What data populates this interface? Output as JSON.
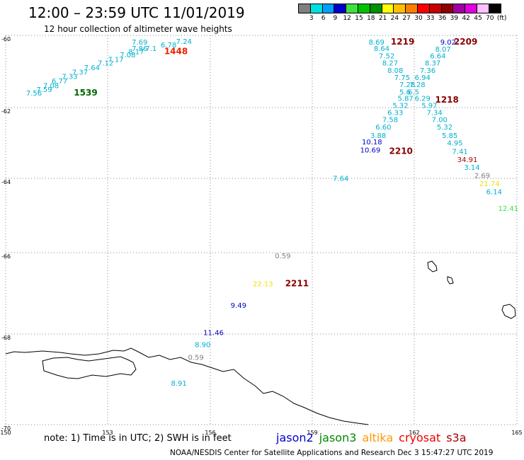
{
  "header": {
    "title": "12:00 – 23:59 UTC 11/01/2019",
    "subtitle": "12 hour collection of altimeter wave heights"
  },
  "legend": {
    "colors": [
      "#808080",
      "#00e0e0",
      "#00a0ff",
      "#0000c8",
      "#40e040",
      "#00c000",
      "#009000",
      "#ffff00",
      "#ffc000",
      "#ff8000",
      "#ff0000",
      "#c80000",
      "#900000",
      "#a000a0",
      "#e000e0",
      "#ffc0ff",
      "#000000"
    ],
    "labels": [
      "3",
      "6",
      "9",
      "12",
      "15",
      "18",
      "21",
      "24",
      "27",
      "30",
      "33",
      "36",
      "39",
      "42",
      "45",
      "70",
      "(ft)"
    ]
  },
  "footer": {
    "note": "note:  1) Time is in UTC;  2) SWH is in feet",
    "credit": "NOAA/NESDIS Center for Satellite Applications and Research     Dec  3 15:47:27 UTC 2019",
    "missions": [
      {
        "name": "jason2",
        "color": "#0000cc"
      },
      {
        "name": "jason3",
        "color": "#008800"
      },
      {
        "name": "altika",
        "color": "#ff9900"
      },
      {
        "name": "cryosat",
        "color": "#ee0000"
      },
      {
        "name": "s3a",
        "color": "#aa0000"
      }
    ]
  },
  "chart_data": {
    "type": "scatter",
    "xlim": [
      150,
      165
    ],
    "ylim": [
      -70,
      -60
    ],
    "x_ticks": [
      "150",
      "153",
      "156",
      "159",
      "162",
      "165"
    ],
    "y_ticks": [
      "-60",
      "-62",
      "-64",
      "-66",
      "-68",
      "-70"
    ],
    "grid": true,
    "series": [
      {
        "name": "jason3",
        "color": "#008800",
        "values": [
          {
            "lon": 152.0,
            "lat": -61.43,
            "label": "1539",
            "color": "#006600",
            "bold": true
          }
        ]
      },
      {
        "name": "cryosat",
        "color": "#ee0000",
        "values": [
          {
            "lon": 154.65,
            "lat": -60.28,
            "label": "1448",
            "color": "#ee2200",
            "bold": true
          }
        ]
      },
      {
        "name": "s3a",
        "color": "#aa0000",
        "values": [
          {
            "lon": 161.3,
            "lat": -60.02,
            "label": "1219",
            "color": "#880000",
            "bold": true
          },
          {
            "lon": 163.15,
            "lat": -60.02,
            "label": "2209",
            "color": "#880000",
            "bold": true
          },
          {
            "lon": 162.6,
            "lat": -61.63,
            "label": "1218",
            "color": "#880000",
            "bold": true
          },
          {
            "lon": 161.25,
            "lat": -63.07,
            "label": "2210",
            "color": "#880000",
            "bold": true
          },
          {
            "lon": 158.2,
            "lat": -66.62,
            "label": "2211",
            "color": "#880000",
            "bold": true
          }
        ]
      },
      {
        "name": "swh",
        "values": [
          {
            "lon": 150.6,
            "lat": -61.43,
            "label": "7.56",
            "color": "#00b0d0"
          },
          {
            "lon": 150.9,
            "lat": -61.33,
            "label": "7.59",
            "color": "#00b0d0"
          },
          {
            "lon": 151.1,
            "lat": -61.23,
            "label": "7.08",
            "color": "#00b0d0"
          },
          {
            "lon": 151.35,
            "lat": -61.1,
            "label": "6.77",
            "color": "#00b0d0"
          },
          {
            "lon": 151.65,
            "lat": -60.97,
            "label": "7.33",
            "color": "#00b0d0"
          },
          {
            "lon": 151.95,
            "lat": -60.85,
            "label": "7.37",
            "color": "#00b0d0"
          },
          {
            "lon": 152.3,
            "lat": -60.73,
            "label": "7.64",
            "color": "#00b0d0"
          },
          {
            "lon": 152.7,
            "lat": -60.6,
            "label": "7.12",
            "color": "#00b0d0"
          },
          {
            "lon": 153.0,
            "lat": -60.5,
            "label": "7.17",
            "color": "#00b0d0"
          },
          {
            "lon": 153.35,
            "lat": -60.37,
            "label": "7.08",
            "color": "#00b0d0"
          },
          {
            "lon": 153.6,
            "lat": -60.28,
            "label": "8.17",
            "color": "#00b0d0"
          },
          {
            "lon": 153.7,
            "lat": -60.2,
            "label": "7.86",
            "color": "#00b0d0"
          },
          {
            "lon": 154.1,
            "lat": -60.2,
            "label": "7.1",
            "color": "#00b0d0"
          },
          {
            "lon": 153.7,
            "lat": -60.02,
            "label": "7.69",
            "color": "#00b0d0"
          },
          {
            "lon": 154.55,
            "lat": -60.1,
            "label": "6.78",
            "color": "#00b0d0"
          },
          {
            "lon": 155.0,
            "lat": -60.0,
            "label": "7.24",
            "color": "#00b0d0"
          },
          {
            "lon": 160.65,
            "lat": -60.02,
            "label": "8.69",
            "color": "#00b0d0"
          },
          {
            "lon": 160.8,
            "lat": -60.2,
            "label": "8.64",
            "color": "#00b0d0"
          },
          {
            "lon": 160.95,
            "lat": -60.4,
            "label": "7.52",
            "color": "#00b0d0"
          },
          {
            "lon": 161.05,
            "lat": -60.6,
            "label": "8.27",
            "color": "#00b0d0"
          },
          {
            "lon": 161.2,
            "lat": -60.8,
            "label": "8.08",
            "color": "#00b0d0"
          },
          {
            "lon": 161.4,
            "lat": -61.0,
            "label": "7.75",
            "color": "#00b0d0"
          },
          {
            "lon": 161.55,
            "lat": -61.2,
            "label": "7.28",
            "color": "#00b0d0"
          },
          {
            "lon": 161.55,
            "lat": -61.4,
            "label": "5.6",
            "color": "#00b0d0"
          },
          {
            "lon": 161.5,
            "lat": -61.58,
            "label": "5.87",
            "color": "#00b0d0"
          },
          {
            "lon": 161.35,
            "lat": -61.77,
            "label": "5.32",
            "color": "#00b0d0"
          },
          {
            "lon": 161.2,
            "lat": -61.97,
            "label": "6.33",
            "color": "#00b0d0"
          },
          {
            "lon": 161.05,
            "lat": -62.17,
            "label": "7.58",
            "color": "#00b0d0"
          },
          {
            "lon": 160.85,
            "lat": -62.38,
            "label": "6.60",
            "color": "#00b0d0"
          },
          {
            "lon": 160.7,
            "lat": -62.62,
            "label": "3.88",
            "color": "#00b0d0"
          },
          {
            "lon": 160.45,
            "lat": -62.8,
            "label": "10.18",
            "color": "#0000cc"
          },
          {
            "lon": 160.4,
            "lat": -63.03,
            "label": "10.69",
            "color": "#0000cc"
          },
          {
            "lon": 159.6,
            "lat": -63.83,
            "label": "7.64",
            "color": "#00b0d0"
          },
          {
            "lon": 162.75,
            "lat": -60.02,
            "label": "9.02",
            "color": "#0000cc"
          },
          {
            "lon": 162.6,
            "lat": -60.22,
            "label": "8.07",
            "color": "#00b0d0"
          },
          {
            "lon": 162.45,
            "lat": -60.4,
            "label": "6.64",
            "color": "#00b0d0"
          },
          {
            "lon": 162.3,
            "lat": -60.6,
            "label": "8.37",
            "color": "#00b0d0"
          },
          {
            "lon": 162.15,
            "lat": -60.8,
            "label": "7.36",
            "color": "#00b0d0"
          },
          {
            "lon": 162.0,
            "lat": -61.0,
            "label": "6.94",
            "color": "#00b0d0"
          },
          {
            "lon": 161.85,
            "lat": -61.2,
            "label": "7.28",
            "color": "#00b0d0"
          },
          {
            "lon": 161.8,
            "lat": -61.4,
            "label": "6.5",
            "color": "#00b0d0"
          },
          {
            "lon": 162.0,
            "lat": -61.58,
            "label": "6.29",
            "color": "#00b0d0"
          },
          {
            "lon": 162.2,
            "lat": -61.77,
            "label": "5.97",
            "color": "#00b0d0"
          },
          {
            "lon": 162.35,
            "lat": -61.97,
            "label": "7.34",
            "color": "#00b0d0"
          },
          {
            "lon": 162.5,
            "lat": -62.17,
            "label": "7.00",
            "color": "#00b0d0"
          },
          {
            "lon": 162.65,
            "lat": -62.38,
            "label": "5.32",
            "color": "#00b0d0"
          },
          {
            "lon": 162.8,
            "lat": -62.62,
            "label": "5.85",
            "color": "#00b0d0"
          },
          {
            "lon": 162.95,
            "lat": -62.83,
            "label": "4.95",
            "color": "#00b0d0"
          },
          {
            "lon": 163.1,
            "lat": -63.07,
            "label": "7.41",
            "color": "#00b0d0"
          },
          {
            "lon": 163.25,
            "lat": -63.3,
            "label": "34.91",
            "color": "#aa0000"
          },
          {
            "lon": 163.45,
            "lat": -63.52,
            "label": "3.14",
            "color": "#00b0d0"
          },
          {
            "lon": 163.75,
            "lat": -63.75,
            "label": "2.69",
            "color": "#808080"
          },
          {
            "lon": 163.9,
            "lat": -63.98,
            "label": "21.74",
            "color": "#f0e000"
          },
          {
            "lon": 164.1,
            "lat": -64.2,
            "label": "6.14",
            "color": "#00b0d0"
          },
          {
            "lon": 164.45,
            "lat": -64.65,
            "label": "12.41",
            "color": "#40e040"
          },
          {
            "lon": 157.9,
            "lat": -65.92,
            "label": "0.59",
            "color": "#808080"
          },
          {
            "lon": 157.25,
            "lat": -66.62,
            "label": "22.13",
            "color": "#f0e000"
          },
          {
            "lon": 156.6,
            "lat": -67.15,
            "label": "9.49",
            "color": "#0000cc"
          },
          {
            "lon": 155.8,
            "lat": -67.82,
            "label": "11.46",
            "color": "#0000cc"
          },
          {
            "lon": 155.55,
            "lat": -68.1,
            "label": "8.90",
            "color": "#00b0d0"
          },
          {
            "lon": 155.35,
            "lat": -68.38,
            "label": "0.59",
            "color": "#808080"
          },
          {
            "lon": 154.85,
            "lat": -68.95,
            "label": "8.91",
            "color": "#00b0d0"
          }
        ]
      }
    ]
  }
}
